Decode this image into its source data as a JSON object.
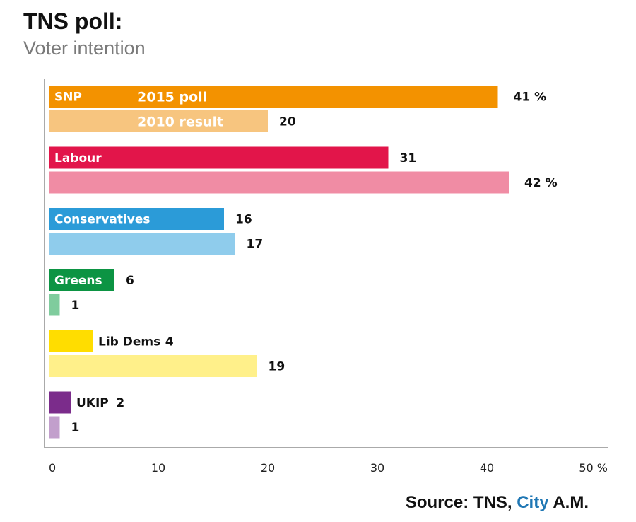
{
  "header": {
    "title": "TNS poll:",
    "subtitle": "Voter intention"
  },
  "footer": {
    "source_prefix": "Source: TNS,",
    "source_brand": "City",
    "source_suffix": "A.M."
  },
  "chart_data": {
    "type": "bar",
    "orientation": "horizontal",
    "title": "TNS poll:",
    "subtitle": "Voter intention",
    "categories": [
      "SNP",
      "Labour",
      "Conservatives",
      "Greens",
      "Lib Dems",
      "UKIP"
    ],
    "series": [
      {
        "name": "2015 poll",
        "values": [
          41,
          31,
          16,
          6,
          4,
          2
        ]
      },
      {
        "name": "2010 result",
        "values": [
          20,
          42,
          17,
          1,
          19,
          1
        ]
      }
    ],
    "value_labels": {
      "2015 poll": [
        "41 %",
        "31",
        "16",
        "6",
        "4",
        "2"
      ],
      "2010 result": [
        "20",
        "42 %",
        "17",
        "1",
        "19",
        "1"
      ]
    },
    "colors": {
      "2015 poll": [
        "#f39200",
        "#e2154a",
        "#2b9bd8",
        "#0c9443",
        "#ffdd00",
        "#7b2c8b"
      ],
      "2010 result": [
        "#f7c57f",
        "#f08ca4",
        "#8fccec",
        "#7fcc9d",
        "#fff08a",
        "#c29fcc"
      ]
    },
    "x_ticks": [
      "0",
      "10",
      "20",
      "30",
      "40",
      "50 %"
    ],
    "xlim": [
      0,
      50
    ],
    "grid": false,
    "legend": "inline in first group"
  }
}
